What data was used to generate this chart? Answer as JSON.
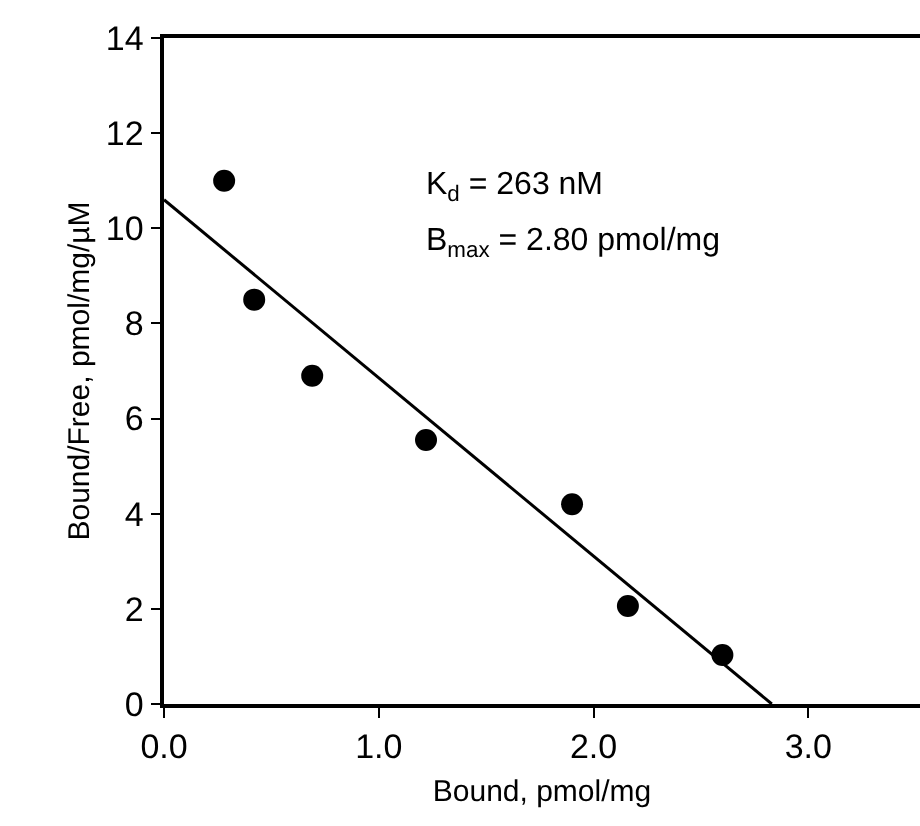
{
  "chart_data": {
    "type": "scatter",
    "xlabel": "Bound, pmol/mg",
    "ylabel": "Bound/Free, pmol/mg/µM",
    "x": [
      0.28,
      0.42,
      0.69,
      1.22,
      1.9,
      2.16,
      2.6
    ],
    "series": [
      {
        "color": "#000000",
        "marker": "circle",
        "values": [
          11.0,
          8.5,
          6.9,
          5.55,
          4.2,
          2.06,
          1.03
        ]
      },
      {
        "type": "line",
        "color": "#000000",
        "line_style": "solid",
        "x": [
          0,
          2.83
        ],
        "values": [
          10.6,
          0
        ]
      }
    ],
    "annotations": [
      "K$_{d}$ = 263 nM",
      "B$_{max}$ = 2.80 pmol/mg"
    ],
    "xlim": [
      0,
      3.52
    ],
    "xticks": [
      {
        "value": 0,
        "label": "0.0"
      },
      {
        "value": 1,
        "label": "1.0"
      },
      {
        "value": 2,
        "label": "2.0"
      },
      {
        "value": 3,
        "label": "3.0"
      }
    ],
    "ylim": [
      0,
      14
    ],
    "yticks": [
      0,
      2,
      4,
      6,
      8,
      10,
      12,
      14
    ]
  }
}
